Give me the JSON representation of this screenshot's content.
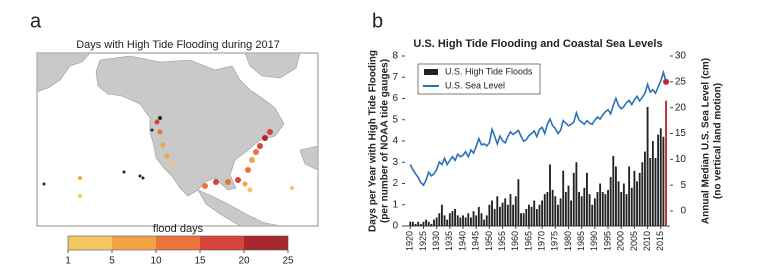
{
  "chart_data": [
    {
      "type": "map",
      "panel_label": "a",
      "title": "Days with High Tide Flooding during 2017",
      "colorbar": {
        "label": "flood days",
        "ticks": [
          1,
          5,
          10,
          15,
          20,
          25
        ],
        "colors": [
          "#f4c560",
          "#f0a443",
          "#e9753b",
          "#d6443a",
          "#a8282f"
        ]
      }
    },
    {
      "type": "combo",
      "panel_label": "b",
      "title": "U.S. High Tide Flooding and Coastal Sea Levels",
      "ylabel": [
        "Days per Year with High Tide Flooding",
        "(per number of NOAA tide gauges)"
      ],
      "y2label": [
        "Annual Median U.S. Sea Level  (cm)",
        "(no vertical land motion)"
      ],
      "x": [
        1920,
        1921,
        1922,
        1923,
        1924,
        1925,
        1926,
        1927,
        1928,
        1929,
        1930,
        1931,
        1932,
        1933,
        1934,
        1935,
        1936,
        1937,
        1938,
        1939,
        1940,
        1941,
        1942,
        1943,
        1944,
        1945,
        1946,
        1947,
        1948,
        1949,
        1950,
        1951,
        1952,
        1953,
        1954,
        1955,
        1956,
        1957,
        1958,
        1959,
        1960,
        1961,
        1962,
        1963,
        1964,
        1965,
        1966,
        1967,
        1968,
        1969,
        1970,
        1971,
        1972,
        1973,
        1974,
        1975,
        1976,
        1977,
        1978,
        1979,
        1980,
        1981,
        1982,
        1983,
        1984,
        1985,
        1986,
        1987,
        1988,
        1989,
        1990,
        1991,
        1992,
        1993,
        1994,
        1995,
        1996,
        1997,
        1998,
        1999,
        2000,
        2001,
        2002,
        2003,
        2004,
        2005,
        2006,
        2007,
        2008,
        2009,
        2010,
        2011,
        2012,
        2013,
        2014,
        2015,
        2016,
        2017
      ],
      "xlim": [
        1918,
        2018.5
      ],
      "xticks": [
        1920,
        1925,
        1930,
        1935,
        1940,
        1945,
        1950,
        1955,
        1960,
        1965,
        1970,
        1975,
        1980,
        1985,
        1990,
        1995,
        2000,
        2005,
        2010,
        2015
      ],
      "ylim": [
        0,
        8
      ],
      "yticks": [
        0,
        1,
        2,
        3,
        4,
        5,
        6,
        7,
        8
      ],
      "y2lim": [
        -2.9,
        30
      ],
      "y2ticks": [
        0,
        5,
        10,
        15,
        20,
        25,
        30
      ],
      "legend": "top-left",
      "series": [
        {
          "name": "U.S. High Tide Floods",
          "kind": "bar",
          "color": "#222222",
          "highlight_x": 2017,
          "highlight_color": "#c0272d",
          "values": [
            0.2,
            0.2,
            0.1,
            0.2,
            0.1,
            0.2,
            0.3,
            0.2,
            0.1,
            0.3,
            0.4,
            0.6,
            1.0,
            0.5,
            0.3,
            0.6,
            0.7,
            0.8,
            0.5,
            0.4,
            0.5,
            0.4,
            0.6,
            0.4,
            0.7,
            0.5,
            0.9,
            0.6,
            0.3,
            0.5,
            1.0,
            1.2,
            0.8,
            1.4,
            0.9,
            1.1,
            1.3,
            1.0,
            1.5,
            1.0,
            1.4,
            2.2,
            0.6,
            0.6,
            0.8,
            1.0,
            0.9,
            1.2,
            0.8,
            1.0,
            1.2,
            1.5,
            1.6,
            2.9,
            1.7,
            1.4,
            1.0,
            1.3,
            2.6,
            1.6,
            1.9,
            1.2,
            2.5,
            3.0,
            1.6,
            1.4,
            1.8,
            2.5,
            1.5,
            1.0,
            1.3,
            1.6,
            2.0,
            1.6,
            1.5,
            1.7,
            2.3,
            3.3,
            2.8,
            2.1,
            1.6,
            2.0,
            1.5,
            2.8,
            1.8,
            2.6,
            2.1,
            2.5,
            3.0,
            3.5,
            5.6,
            3.2,
            4.0,
            3.2,
            4.3,
            4.6,
            4.2,
            5.9
          ]
        },
        {
          "name": "U.S. Sea Level",
          "kind": "line",
          "axis": "y2",
          "color": "#2a72b8",
          "end_marker_color": "#c0272d",
          "values": [
            9.0,
            8.0,
            7.2,
            6.5,
            5.5,
            5.0,
            6.0,
            7.5,
            6.8,
            7.2,
            8.0,
            9.5,
            9.0,
            10.2,
            9.0,
            9.8,
            10.5,
            9.8,
            11.0,
            10.5,
            10.8,
            11.5,
            10.5,
            11.8,
            11.2,
            12.5,
            14.0,
            12.8,
            13.0,
            12.6,
            13.2,
            15.8,
            14.5,
            13.0,
            14.5,
            13.6,
            13.2,
            14.4,
            15.3,
            14.8,
            15.2,
            15.6,
            14.5,
            13.5,
            13.8,
            14.6,
            15.0,
            15.5,
            14.4,
            15.8,
            16.2,
            15.0,
            16.8,
            17.8,
            16.5,
            16.0,
            15.0,
            15.6,
            17.5,
            17.0,
            16.5,
            16.8,
            17.2,
            19.0,
            17.6,
            17.2,
            16.8,
            17.5,
            17.0,
            16.8,
            17.6,
            18.2,
            17.8,
            18.6,
            19.2,
            19.6,
            18.8,
            20.5,
            21.8,
            20.4,
            19.8,
            20.2,
            21.0,
            21.4,
            20.6,
            21.5,
            22.2,
            21.3,
            22.0,
            22.8,
            24.5,
            23.0,
            23.5,
            22.8,
            24.0,
            25.2,
            26.8,
            25.0
          ]
        }
      ]
    }
  ]
}
